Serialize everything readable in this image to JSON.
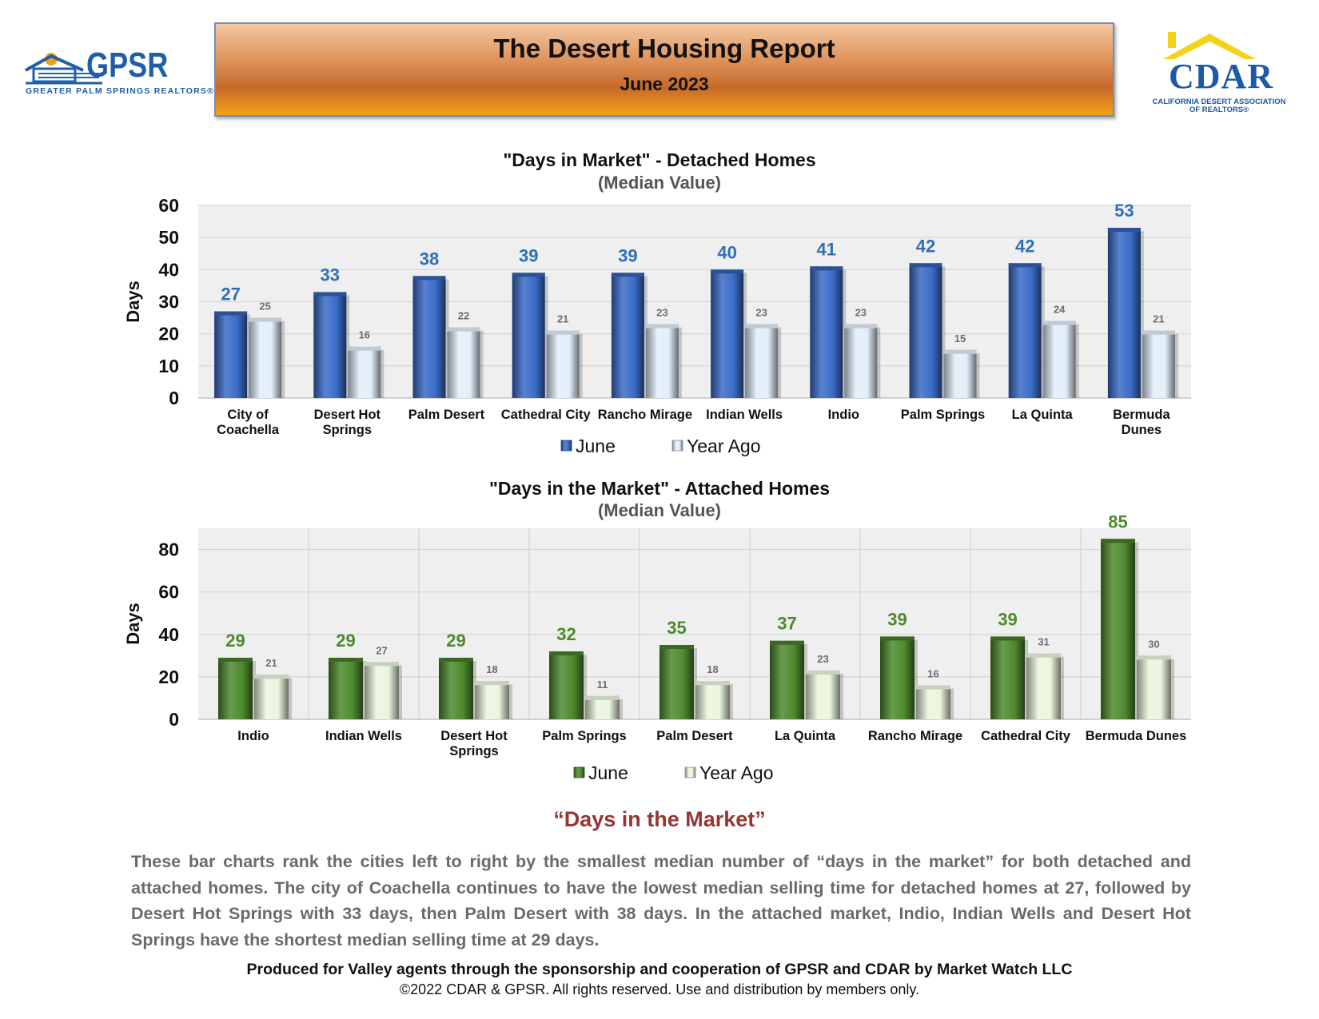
{
  "header": {
    "title": "The Desert Housing Report",
    "subtitle": "June 2023",
    "gpsr_logo_text": "GPSR",
    "gpsr_tagline": "GREATER PALM SPRINGS REALTORS®",
    "cdar_logo_text": "CDAR",
    "cdar_tagline_1": "CALIFORNIA DESERT ASSOCIATION",
    "cdar_tagline_2": "OF REALTORS®"
  },
  "chart_data": [
    {
      "type": "bar",
      "title": "\"Days in Market\" - Detached Homes",
      "subtitle": "(Median Value)",
      "ylabel": "Days",
      "xlabel": "",
      "ylim": [
        0,
        60
      ],
      "yticks": [
        0,
        10,
        20,
        30,
        40,
        50,
        60
      ],
      "grid": true,
      "legend": "bottom",
      "categories": [
        [
          "City of",
          "Coachella"
        ],
        [
          "Desert Hot",
          "Springs"
        ],
        [
          "Palm Desert"
        ],
        [
          "Cathedral City"
        ],
        [
          "Rancho Mirage"
        ],
        [
          "Indian Wells"
        ],
        [
          "Indio"
        ],
        [
          "Palm Springs"
        ],
        [
          "La Quinta"
        ],
        [
          "Bermuda",
          "Dunes"
        ]
      ],
      "series": [
        {
          "name": "June",
          "values": [
            27,
            33,
            38,
            39,
            39,
            40,
            41,
            42,
            42,
            53
          ],
          "color": "#3a6cc8",
          "label_color": "#2f6fb7"
        },
        {
          "name": "Year Ago",
          "values": [
            25,
            16,
            22,
            21,
            23,
            23,
            23,
            15,
            24,
            21
          ],
          "color": "#e2eefa",
          "label_color": "#6d6d6d"
        }
      ]
    },
    {
      "type": "bar",
      "title": "\"Days in the Market\" - Attached Homes",
      "subtitle": "(Median Value)",
      "ylabel": "Days",
      "xlabel": "",
      "ylim": [
        0,
        90
      ],
      "yticks": [
        0,
        20,
        40,
        60,
        80
      ],
      "grid": true,
      "legend": "bottom",
      "categories": [
        [
          "Indio"
        ],
        [
          "Indian Wells"
        ],
        [
          "Desert Hot",
          "Springs"
        ],
        [
          "Palm Springs"
        ],
        [
          "Palm Desert"
        ],
        [
          "La Quinta"
        ],
        [
          "Rancho Mirage"
        ],
        [
          "Cathedral City"
        ],
        [
          "Bermuda Dunes"
        ]
      ],
      "series": [
        {
          "name": "June",
          "values": [
            29,
            29,
            29,
            32,
            35,
            37,
            39,
            39,
            85
          ],
          "color": "#4f8a2e",
          "label_color": "#4c8a2c"
        },
        {
          "name": "Year Ago",
          "values": [
            21,
            27,
            18,
            11,
            18,
            23,
            16,
            31,
            30
          ],
          "color": "#eaf6de",
          "label_color": "#6d6d6d"
        }
      ]
    }
  ],
  "section": {
    "title": "“Days in the Market”",
    "paragraph": "These bar charts rank the cities left to right by the smallest median number of “days in the market” for both detached and attached homes. The city of Coachella continues to have the lowest median selling time for detached homes at 27, followed by Desert Hot Springs with 33 days, then Palm Desert with 38 days. In the attached market, Indio, Indian Wells and Desert Hot Springs have the shortest median selling time at 29 days."
  },
  "footer": {
    "produced": "Produced for Valley agents through the sponsorship and cooperation of GPSR and CDAR by Market Watch LLC",
    "copyright": "©2022 CDAR & GPSR.  All rights reserved.  Use and distribution by members only."
  }
}
